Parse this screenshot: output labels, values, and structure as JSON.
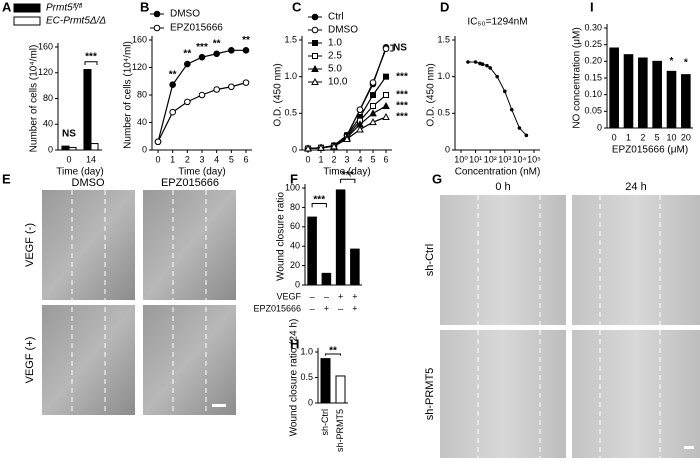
{
  "panels": [
    "A",
    "B",
    "C",
    "D",
    "I",
    "E",
    "F",
    "G",
    "H"
  ],
  "micrographs": {
    "E": {
      "columns": [
        "DMSO",
        "EPZ015666"
      ],
      "rows": [
        "VEGF (-)",
        "VEGF (+)"
      ]
    },
    "G": {
      "columns": [
        "0 h",
        "24 h"
      ],
      "rows": [
        "sh-Ctrl",
        "sh-PRMT5"
      ]
    }
  },
  "chart_data": [
    {
      "type": "bar",
      "ylabel": "Number of cells (10⁴/ml)",
      "xlabel": "Time (day)",
      "categories": [
        "0",
        "14"
      ],
      "series": [
        {
          "name": "Prmt5ᶠˡ/ᶠˡ",
          "color": "#000000",
          "values": [
            6,
            125
          ]
        },
        {
          "name": "EC-Prmt5Δ/Δ",
          "color": "#ffffff",
          "values": [
            4,
            10
          ]
        }
      ],
      "ylim": [
        0,
        160
      ],
      "yticks": [
        0,
        40,
        80,
        120,
        160
      ],
      "annotations": [
        "NS",
        "***"
      ]
    },
    {
      "type": "line",
      "ylabel": "Number of cells (10⁴/ml)",
      "xlabel": "Time (day)",
      "x": [
        0,
        1,
        2,
        3,
        4,
        5,
        6
      ],
      "xlim": [
        0,
        6
      ],
      "xticks": [
        0,
        1,
        2,
        3,
        4,
        5,
        6
      ],
      "ylim": [
        0,
        160
      ],
      "yticks": [
        0,
        40,
        80,
        120,
        160
      ],
      "series": [
        {
          "name": "DMSO",
          "color": "#000000",
          "marker": "circle-filled",
          "values": [
            12,
            95,
            125,
            135,
            140,
            145,
            145
          ]
        },
        {
          "name": "EPZ015666",
          "color": "#000000",
          "marker": "circle-open",
          "values": [
            12,
            55,
            70,
            80,
            88,
            92,
            98
          ]
        }
      ],
      "annotations": [
        "**",
        "**",
        "***",
        "**",
        "**"
      ]
    },
    {
      "type": "line",
      "ylabel": "O.D. (450 nm)",
      "xlabel": "Time (day)",
      "x": [
        0,
        1,
        2,
        3,
        4,
        5,
        6
      ],
      "xlim": [
        0,
        6
      ],
      "xticks": [
        0,
        1,
        2,
        3,
        4,
        5,
        6
      ],
      "ylim": [
        0,
        1.5
      ],
      "yticks": [
        0,
        0.5,
        {
          "value": 1,
          "label": "1.0"
        },
        1.5
      ],
      "series": [
        {
          "name": "Ctrl",
          "color": "#000000",
          "marker": "circle-filled",
          "values": [
            0.02,
            0.03,
            0.06,
            0.2,
            0.55,
            0.9,
            1.4
          ]
        },
        {
          "name": "DMSO",
          "color": "#000000",
          "marker": "circle-open",
          "values": [
            0.02,
            0.03,
            0.06,
            0.2,
            0.55,
            0.92,
            1.38
          ]
        },
        {
          "name": "1.0",
          "color": "#000000",
          "marker": "square-filled",
          "values": [
            0.02,
            0.03,
            0.06,
            0.2,
            0.45,
            0.75,
            1.0
          ]
        },
        {
          "name": "2.5",
          "color": "#000000",
          "marker": "square-open",
          "values": [
            0.02,
            0.03,
            0.05,
            0.18,
            0.4,
            0.6,
            0.75
          ]
        },
        {
          "name": "5.0",
          "color": "#000000",
          "marker": "triangle-filled",
          "values": [
            0.02,
            0.03,
            0.05,
            0.17,
            0.35,
            0.5,
            0.6
          ]
        },
        {
          "name": "10.0",
          "color": "#000000",
          "marker": "triangle-open",
          "values": [
            0.02,
            0.03,
            0.05,
            0.15,
            0.28,
            0.38,
            0.45
          ]
        }
      ],
      "annotations": [
        "NS",
        "***",
        "***",
        "***",
        "***"
      ]
    },
    {
      "type": "scatter",
      "ylabel": "O.D. (450 nm)",
      "xlabel": "Concentration (nM)",
      "log_x": true,
      "x": [
        3,
        10,
        20,
        30,
        60,
        100,
        300,
        1000,
        3000,
        10000,
        30000
      ],
      "values": [
        1.2,
        1.2,
        1.18,
        1.17,
        1.15,
        1.12,
        1.0,
        0.8,
        0.55,
        0.3,
        0.2
      ],
      "xlim": [
        1,
        100000
      ],
      "xticks": [
        {
          "value": 1,
          "label": "10⁰"
        },
        {
          "value": 10,
          "label": "10¹"
        },
        {
          "value": 100,
          "label": "10²"
        },
        {
          "value": 1000,
          "label": "10³"
        },
        {
          "value": 10000,
          "label": "10⁴"
        },
        {
          "value": 100000,
          "label": "10⁵"
        }
      ],
      "ylim": [
        0,
        1.5
      ],
      "yticks": [
        0,
        0.5,
        {
          "value": 1,
          "label": "1.0"
        },
        1.5
      ],
      "color": "#000000",
      "annotations": [
        "IC₅₀=1294nM"
      ]
    },
    {
      "type": "bar",
      "ylabel": "NO concentration (μM)",
      "xlabel": "EPZ015666 (μM)",
      "categories": [
        "0",
        "1",
        "2",
        "5",
        "10",
        "20"
      ],
      "values": [
        0.24,
        0.22,
        0.21,
        0.2,
        0.17,
        0.16
      ],
      "color": "#000000",
      "ylim": [
        0,
        0.3
      ],
      "yticks": [
        0,
        0.05,
        {
          "value": 0.1,
          "label": "0.10"
        },
        0.15,
        {
          "value": 0.2,
          "label": "0.20"
        },
        0.25,
        {
          "value": 0.3,
          "label": "0.30"
        }
      ],
      "annotations": [
        "*",
        "*"
      ]
    },
    {
      "type": "bar",
      "ylabel": "Wound closure ratio",
      "categories": [
        null,
        null,
        null,
        null
      ],
      "values": [
        70,
        12,
        98,
        37
      ],
      "color": "#000000",
      "ylim": [
        0,
        100
      ],
      "yticks": [
        0,
        20,
        40,
        60,
        80,
        100
      ],
      "conditions": [
        {
          "label": "VEGF",
          "values": [
            "–",
            "–",
            "+",
            "+"
          ]
        },
        {
          "label": "EPZ015666",
          "values": [
            "–",
            "+",
            "–",
            "+"
          ]
        }
      ],
      "annotations": [
        "***",
        "***"
      ]
    },
    {
      "type": "bar",
      "ylabel": "Wound closure ratio (24 h)",
      "categories": [
        "sh-Ctrl",
        "sh-PRMT5"
      ],
      "values": [
        0.87,
        0.53
      ],
      "colors": [
        "#000000",
        "#ffffff"
      ],
      "ylim": [
        0,
        1
      ],
      "yticks": [
        0,
        0.5,
        {
          "value": 1,
          "label": "1.0"
        }
      ],
      "annotations": [
        "**"
      ]
    }
  ]
}
